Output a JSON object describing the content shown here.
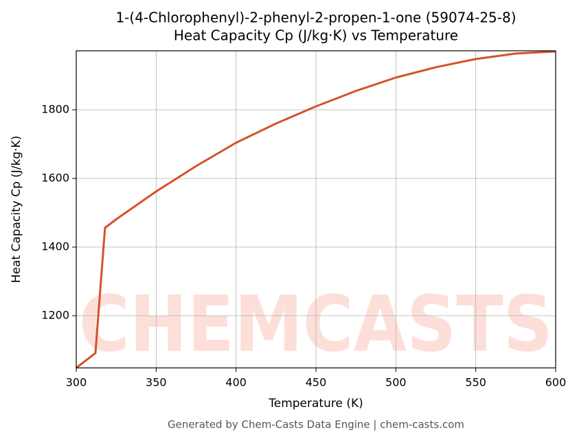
{
  "chart_data": {
    "type": "line",
    "title": "1-(4-Chlorophenyl)-2-phenyl-2-propen-1-one (59074-25-8)",
    "subtitle": "Heat Capacity Cp (J/kg·K) vs Temperature",
    "x_label": "Temperature (K)",
    "y_label": "Heat Capacity Cp (J/kg·K)",
    "watermark": "CHEMCASTS",
    "footer": "Generated by Chem-Casts Data Engine | chem-casts.com",
    "x": [
      300,
      312,
      318,
      325,
      350,
      375,
      400,
      425,
      450,
      475,
      500,
      525,
      550,
      575,
      600
    ],
    "series": [
      {
        "name": "Cp",
        "color": "#d4522a",
        "values": [
          1048,
          1091,
          1456,
          1481,
          1562,
          1636,
          1704,
          1760,
          1810,
          1855,
          1894,
          1924,
          1948,
          1964,
          1970
        ]
      }
    ],
    "xlim": [
      300,
      600
    ],
    "ylim": [
      1048,
      1972
    ],
    "xticks": [
      300,
      350,
      400,
      450,
      500,
      550,
      600
    ],
    "yticks": [
      1200,
      1400,
      1600,
      1800
    ],
    "grid": true
  }
}
